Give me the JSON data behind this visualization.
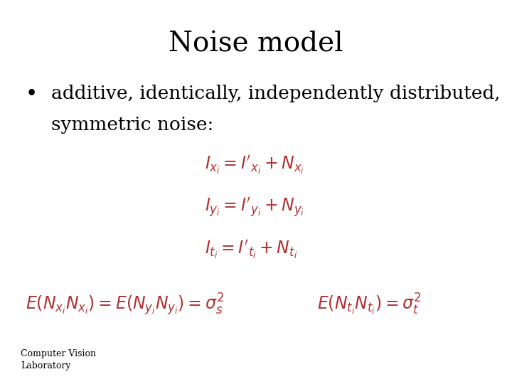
{
  "title": "Noise model",
  "title_fontsize": 28,
  "title_color": "#000000",
  "bullet_text_line1": "additive, identically, independently distributed,",
  "bullet_text_line2": "symmetric noise:",
  "bullet_fontsize": 19,
  "bullet_color": "#000000",
  "eq_color": "#b03030",
  "eq_fontsize": 17,
  "footer_text": "Computer Vision\nLaboratory",
  "footer_fontsize": 9,
  "footer_color": "#000000",
  "bg_color": "#ffffff"
}
